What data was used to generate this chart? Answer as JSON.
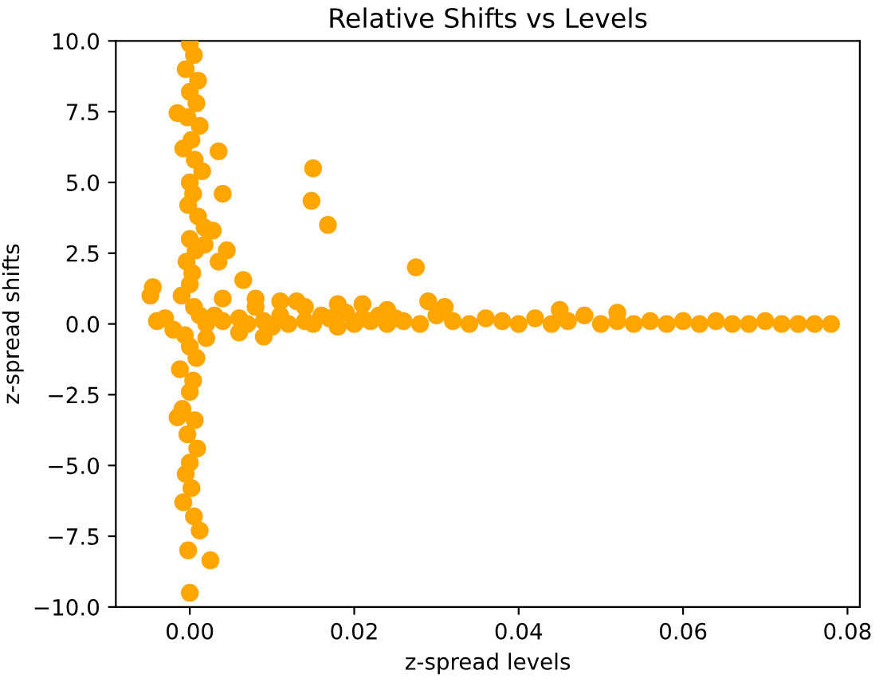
{
  "chart_data": {
    "type": "scatter",
    "title": "Relative Shifts vs Levels",
    "xlabel": "z-spread levels",
    "ylabel": "z-spread shifts",
    "xlim": [
      -0.009,
      0.0815
    ],
    "ylim": [
      -10.0,
      10.0
    ],
    "xticks": [
      {
        "value": 0,
        "label": "0.00"
      },
      {
        "value": 0.02,
        "label": "0.02"
      },
      {
        "value": 0.04,
        "label": "0.04"
      },
      {
        "value": 0.06,
        "label": "0.06"
      },
      {
        "value": 0.08,
        "label": "0.08"
      }
    ],
    "yticks": [
      {
        "value": -10,
        "label": "−10.0"
      },
      {
        "value": -7.5,
        "label": "−7.5"
      },
      {
        "value": -5,
        "label": "−5.0"
      },
      {
        "value": -2.5,
        "label": "−2.5"
      },
      {
        "value": 0,
        "label": "0.0"
      },
      {
        "value": 2.5,
        "label": "2.5"
      },
      {
        "value": 5,
        "label": "5.0"
      },
      {
        "value": 7.5,
        "label": "7.5"
      },
      {
        "value": 10,
        "label": "10.0"
      }
    ],
    "grid": false,
    "marker": "circle",
    "series": [
      {
        "color": "#ffa500",
        "x": [
          0.0,
          0.0005,
          -0.0005,
          0.001,
          0.0,
          0.0008,
          -0.0003,
          0.0012,
          0.0002,
          -0.0008,
          0.0006,
          0.0015,
          0.0,
          0.0004,
          -0.0002,
          0.001,
          0.0018,
          0.0,
          0.0007,
          -0.0004,
          0.0003,
          0.0,
          -0.001,
          0.0005,
          0.0012,
          -0.0006,
          0.0,
          0.0008,
          -0.0012,
          0.0004,
          0.0,
          -0.0009,
          0.0006,
          -0.0003,
          0.0009,
          0.0,
          -0.0005,
          0.0002,
          -0.0008,
          0.0005,
          0.0012,
          -0.0002,
          0.0,
          -0.0015,
          0.0035,
          0.004,
          0.0028,
          0.0045,
          -0.0045,
          -0.0048,
          0.0065,
          0.0025,
          0.015,
          0.0148,
          0.0168,
          0.0275,
          0.0018,
          -0.0015,
          0.0035,
          0.002,
          -0.004,
          -0.003,
          -0.002,
          0.002,
          0.003,
          0.004,
          0.006,
          0.007,
          0.008,
          0.009,
          0.01,
          0.011,
          0.012,
          0.013,
          0.014,
          0.015,
          0.016,
          0.017,
          0.018,
          0.019,
          0.02,
          0.021,
          0.022,
          0.023,
          0.024,
          0.025,
          0.026,
          0.028,
          0.03,
          0.032,
          0.034,
          0.036,
          0.038,
          0.04,
          0.042,
          0.044,
          0.046,
          0.048,
          0.05,
          0.052,
          0.054,
          0.056,
          0.058,
          0.06,
          0.062,
          0.064,
          0.066,
          0.068,
          0.07,
          0.072,
          0.074,
          0.076,
          0.078,
          0.008,
          0.011,
          0.014,
          0.018,
          0.021,
          0.024,
          0.029,
          0.031,
          0.045,
          0.052,
          0.004,
          0.006,
          0.009
        ],
        "values": [
          9.9,
          9.5,
          9.0,
          8.6,
          8.2,
          7.8,
          7.3,
          7.0,
          6.5,
          6.2,
          5.8,
          5.4,
          5.0,
          4.6,
          4.2,
          3.8,
          3.4,
          3.0,
          2.6,
          2.2,
          1.8,
          1.4,
          1.0,
          0.6,
          0.3,
          -0.4,
          -0.8,
          -1.2,
          -1.6,
          -2.0,
          -2.4,
          -3.0,
          -3.4,
          -3.9,
          -4.4,
          -4.9,
          -5.3,
          -5.8,
          -6.3,
          -6.8,
          -7.3,
          -8.0,
          -9.5,
          7.45,
          6.1,
          4.6,
          3.3,
          2.6,
          1.3,
          1.0,
          1.55,
          -8.35,
          5.5,
          4.35,
          3.5,
          2.0,
          2.8,
          -3.3,
          2.2,
          -0.5,
          0.1,
          0.2,
          -0.2,
          0.0,
          0.3,
          0.1,
          0.2,
          0.0,
          0.6,
          0.1,
          -0.1,
          0.3,
          0.0,
          0.8,
          0.1,
          0.0,
          0.3,
          0.2,
          -0.1,
          0.4,
          0.0,
          0.2,
          0.1,
          0.3,
          0.0,
          0.2,
          0.1,
          0.0,
          0.3,
          0.1,
          0.0,
          0.2,
          0.1,
          0.0,
          0.2,
          0.0,
          0.1,
          0.3,
          0.0,
          0.1,
          0.0,
          0.1,
          0.0,
          0.1,
          0.0,
          0.1,
          0.0,
          0.0,
          0.1,
          0.0,
          0.0,
          0.0,
          0.0,
          0.9,
          0.8,
          0.6,
          0.7,
          0.7,
          0.5,
          0.8,
          0.6,
          0.5,
          0.4,
          0.9,
          -0.3,
          -0.45
        ]
      }
    ]
  }
}
